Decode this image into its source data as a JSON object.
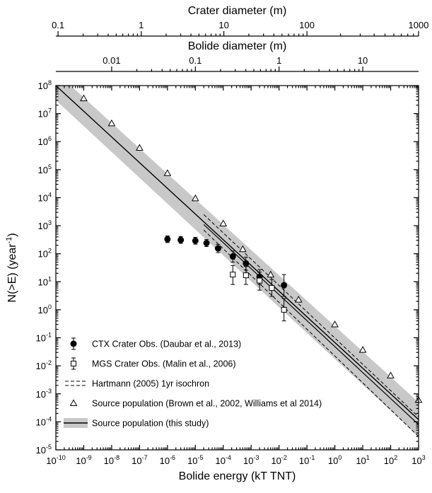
{
  "chart_data": {
    "type": "scatter",
    "title": "",
    "xlabel": "Bolide energy (kT TNT)",
    "ylabel_main": "N(>E) (year",
    "ylabel_sup": "-1",
    "ylabel_tail": ")",
    "x_scale": "log",
    "y_scale": "log",
    "xlim": [
      1e-10,
      1000
    ],
    "ylim": [
      1e-05,
      100000000.0
    ],
    "x_ticks": [
      {
        "value": 1e-10,
        "base": "10",
        "exp": "-10"
      },
      {
        "value": 1e-09,
        "base": "10",
        "exp": "-9"
      },
      {
        "value": 1e-08,
        "base": "10",
        "exp": "-8"
      },
      {
        "value": 1e-07,
        "base": "10",
        "exp": "-7"
      },
      {
        "value": 1e-06,
        "base": "10",
        "exp": "-6"
      },
      {
        "value": 1e-05,
        "base": "10",
        "exp": "-5"
      },
      {
        "value": 0.0001,
        "base": "10",
        "exp": "-4"
      },
      {
        "value": 0.001,
        "base": "10",
        "exp": "-3"
      },
      {
        "value": 0.01,
        "base": "10",
        "exp": "-2"
      },
      {
        "value": 0.1,
        "base": "10",
        "exp": "-1"
      },
      {
        "value": 1,
        "base": "10",
        "exp": "0"
      },
      {
        "value": 10,
        "base": "10",
        "exp": "1"
      },
      {
        "value": 100,
        "base": "10",
        "exp": "2"
      },
      {
        "value": 1000,
        "base": "10",
        "exp": "3"
      }
    ],
    "y_ticks": [
      {
        "value": 100000000.0,
        "base": "10",
        "exp": "8"
      },
      {
        "value": 10000000.0,
        "base": "10",
        "exp": "7"
      },
      {
        "value": 1000000.0,
        "base": "10",
        "exp": "6"
      },
      {
        "value": 100000.0,
        "base": "10",
        "exp": "5"
      },
      {
        "value": 10000.0,
        "base": "10",
        "exp": "4"
      },
      {
        "value": 1000.0,
        "base": "10",
        "exp": "3"
      },
      {
        "value": 100,
        "base": "10",
        "exp": "2"
      },
      {
        "value": 10,
        "base": "10",
        "exp": "1"
      },
      {
        "value": 1,
        "base": "10",
        "exp": "0"
      },
      {
        "value": 0.1,
        "base": "10",
        "exp": "-1"
      },
      {
        "value": 0.01,
        "base": "10",
        "exp": "-2"
      },
      {
        "value": 0.001,
        "base": "10",
        "exp": "-3"
      },
      {
        "value": 0.0001,
        "base": "10",
        "exp": "-4"
      },
      {
        "value": 1e-05,
        "base": "10",
        "exp": "-5"
      }
    ],
    "top_axes": [
      {
        "label": "Crater diameter (m)",
        "ticks": [
          {
            "label": "0.1",
            "energy_kt": 1.2e-10
          },
          {
            "label": "1",
            "energy_kt": 1.15e-07
          },
          {
            "label": "10",
            "energy_kt": 0.000105
          },
          {
            "label": "100",
            "energy_kt": 0.1
          },
          {
            "label": "1000",
            "energy_kt": 1000
          }
        ]
      },
      {
        "label": "Bolide diameter (m)",
        "ticks": [
          {
            "label": "0.01",
            "energy_kt": 1e-08
          },
          {
            "label": "0.1",
            "energy_kt": 1e-05
          },
          {
            "label": "1",
            "energy_kt": 0.01
          },
          {
            "label": "10",
            "energy_kt": 10
          }
        ]
      }
    ],
    "series": [
      {
        "name": "CTX Crater Obs. (Daubar et al., 2013)",
        "marker": "filled-circle",
        "points": [
          {
            "x": 1e-06,
            "y": 330,
            "lo": 250,
            "hi": 430
          },
          {
            "x": 3e-06,
            "y": 310,
            "lo": 235,
            "hi": 410
          },
          {
            "x": 1e-05,
            "y": 290,
            "lo": 220,
            "hi": 385
          },
          {
            "x": 2.5e-05,
            "y": 240,
            "lo": 180,
            "hi": 320
          },
          {
            "x": 6.5e-05,
            "y": 155,
            "lo": 110,
            "hi": 215
          },
          {
            "x": 0.00022,
            "y": 80,
            "lo": 50,
            "hi": 125
          },
          {
            "x": 0.00065,
            "y": 45,
            "lo": 26,
            "hi": 75
          },
          {
            "x": 0.002,
            "y": 15,
            "lo": 8,
            "hi": 27
          },
          {
            "x": 0.015,
            "y": 7.5,
            "lo": 3,
            "hi": 18
          }
        ]
      },
      {
        "name": "MGS Crater Obs. (Malin et al., 2006)",
        "marker": "open-square",
        "points": [
          {
            "x": 0.00022,
            "y": 18,
            "lo": 8,
            "hi": 38
          },
          {
            "x": 0.00065,
            "y": 17,
            "lo": 8,
            "hi": 35
          },
          {
            "x": 0.002,
            "y": 11,
            "lo": 5,
            "hi": 22
          },
          {
            "x": 0.0055,
            "y": 6,
            "lo": 3,
            "hi": 12
          },
          {
            "x": 0.015,
            "y": 1,
            "lo": 0.4,
            "hi": 2.5
          }
        ]
      },
      {
        "name": "Hartmann (2005) 1yr isochron",
        "style": "dashed",
        "lines": [
          {
            "x": [
              2e-05,
              1000
            ],
            "y": [
              2500,
              0.00015
            ]
          },
          {
            "x": [
              2e-05,
              1000
            ],
            "y": [
              700,
              3e-05
            ]
          }
        ]
      },
      {
        "name": "Source population (Brown et al., 2002, Williams et al 2014)",
        "marker": "open-triangle",
        "points": [
          {
            "x": 1e-09,
            "y": 35000000.0
          },
          {
            "x": 1e-08,
            "y": 4500000.0
          },
          {
            "x": 1e-07,
            "y": 600000.0
          },
          {
            "x": 1e-06,
            "y": 75000.0
          },
          {
            "x": 1e-05,
            "y": 9500
          },
          {
            "x": 0.0001,
            "y": 1200
          },
          {
            "x": 0.0005,
            "y": 145
          },
          {
            "x": 0.005,
            "y": 18
          },
          {
            "x": 0.05,
            "y": 2.3
          },
          {
            "x": 1,
            "y": 0.3
          },
          {
            "x": 10,
            "y": 0.037
          },
          {
            "x": 100,
            "y": 0.0045
          },
          {
            "x": 1000,
            "y": 0.0006
          }
        ]
      },
      {
        "name": "Source population (this study)",
        "style": "solid-with-band",
        "line": {
          "x": [
            1e-10,
            1000
          ],
          "y": [
            100000000.0,
            0.00012
          ]
        },
        "band_upper": {
          "x": [
            1e-10,
            1000
          ],
          "y": [
            300000000.0,
            0.0005
          ]
        },
        "band_lower": {
          "x": [
            1e-10,
            1000
          ],
          "y": [
            30000000.0,
            3e-05
          ]
        }
      },
      {
        "name": "Source population (this study) inner line",
        "style": "solid",
        "line": {
          "x": [
            2e-05,
            1000
          ],
          "y": [
            1100,
            8e-05
          ]
        }
      }
    ],
    "legend_position": "bottom-left",
    "grid": false
  }
}
